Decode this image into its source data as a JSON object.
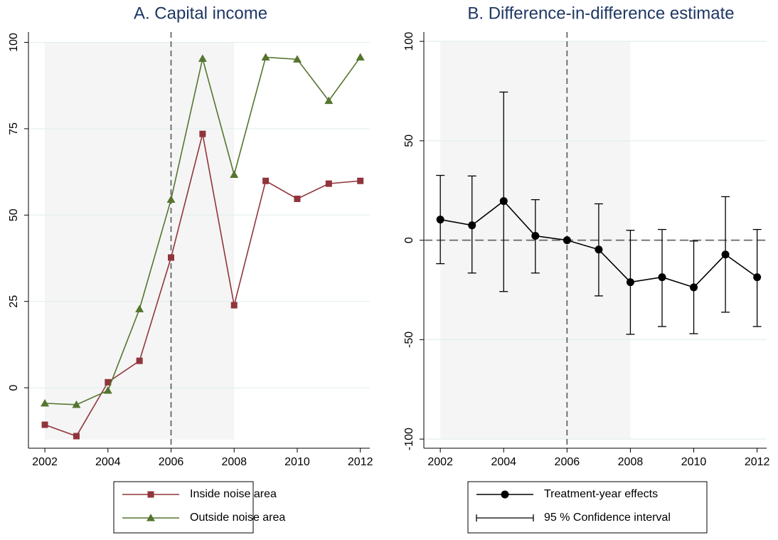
{
  "chart_data": [
    {
      "type": "line",
      "title": "A. Capital income",
      "x": [
        2002,
        2003,
        2004,
        2005,
        2006,
        2007,
        2008,
        2009,
        2010,
        2011,
        2012
      ],
      "series": [
        {
          "name": "Inside noise area",
          "color": "#90353b",
          "marker": "square",
          "values": [
            -10.7,
            -14,
            1.6,
            7.8,
            37.7,
            73.5,
            23.9,
            59.9,
            54.7,
            59.1,
            59.9
          ]
        },
        {
          "name": "Outside noise area",
          "color": "#55752f",
          "marker": "triangle",
          "values": [
            -4.5,
            -4.9,
            -0.8,
            22.8,
            54.5,
            95.3,
            61.7,
            95.7,
            95.1,
            83.1,
            95.7
          ]
        }
      ],
      "xlim": [
        2001.48,
        2012.3
      ],
      "xticks": [
        2002,
        2004,
        2006,
        2008,
        2010,
        2012
      ],
      "ylim": [
        -17.5,
        103
      ],
      "yticks": [
        0,
        25,
        50,
        75,
        100
      ],
      "grid": true,
      "shade": {
        "x": [
          2002,
          2008
        ],
        "y": [
          -15,
          100
        ]
      },
      "vline": 2006
    },
    {
      "type": "errorbar",
      "title": "B. Difference-in-difference estimate",
      "x": [
        2002,
        2003,
        2004,
        2005,
        2006,
        2007,
        2008,
        2009,
        2010,
        2011,
        2012
      ],
      "series": [
        {
          "name": "Treatment-year effects",
          "color": "#000000",
          "values": [
            10.4,
            7.5,
            19.7,
            2.2,
            0,
            -4.7,
            -21.1,
            -18.6,
            -23.7,
            -7.2,
            -18.6
          ],
          "lower": [
            -11.8,
            -16.5,
            -25.8,
            -16.5,
            null,
            -28,
            -47.3,
            -43.4,
            -47,
            -36.2,
            -43.4
          ],
          "upper": [
            32.6,
            32.3,
            74.5,
            20.4,
            null,
            18.3,
            5,
            5.4,
            -0.4,
            21.9,
            5.4
          ]
        }
      ],
      "ci_label": "95 % Confidence interval",
      "xlim": [
        2001.48,
        2012.3
      ],
      "xticks": [
        2002,
        2004,
        2006,
        2008,
        2010,
        2012
      ],
      "ylim": [
        -104.6,
        104.7
      ],
      "yticks": [
        -100,
        -50,
        0,
        50,
        100
      ],
      "grid": true,
      "shade": {
        "x": [
          2002,
          2008
        ],
        "y": [
          -100,
          100
        ]
      },
      "vline": 2006,
      "hline": 0
    }
  ]
}
